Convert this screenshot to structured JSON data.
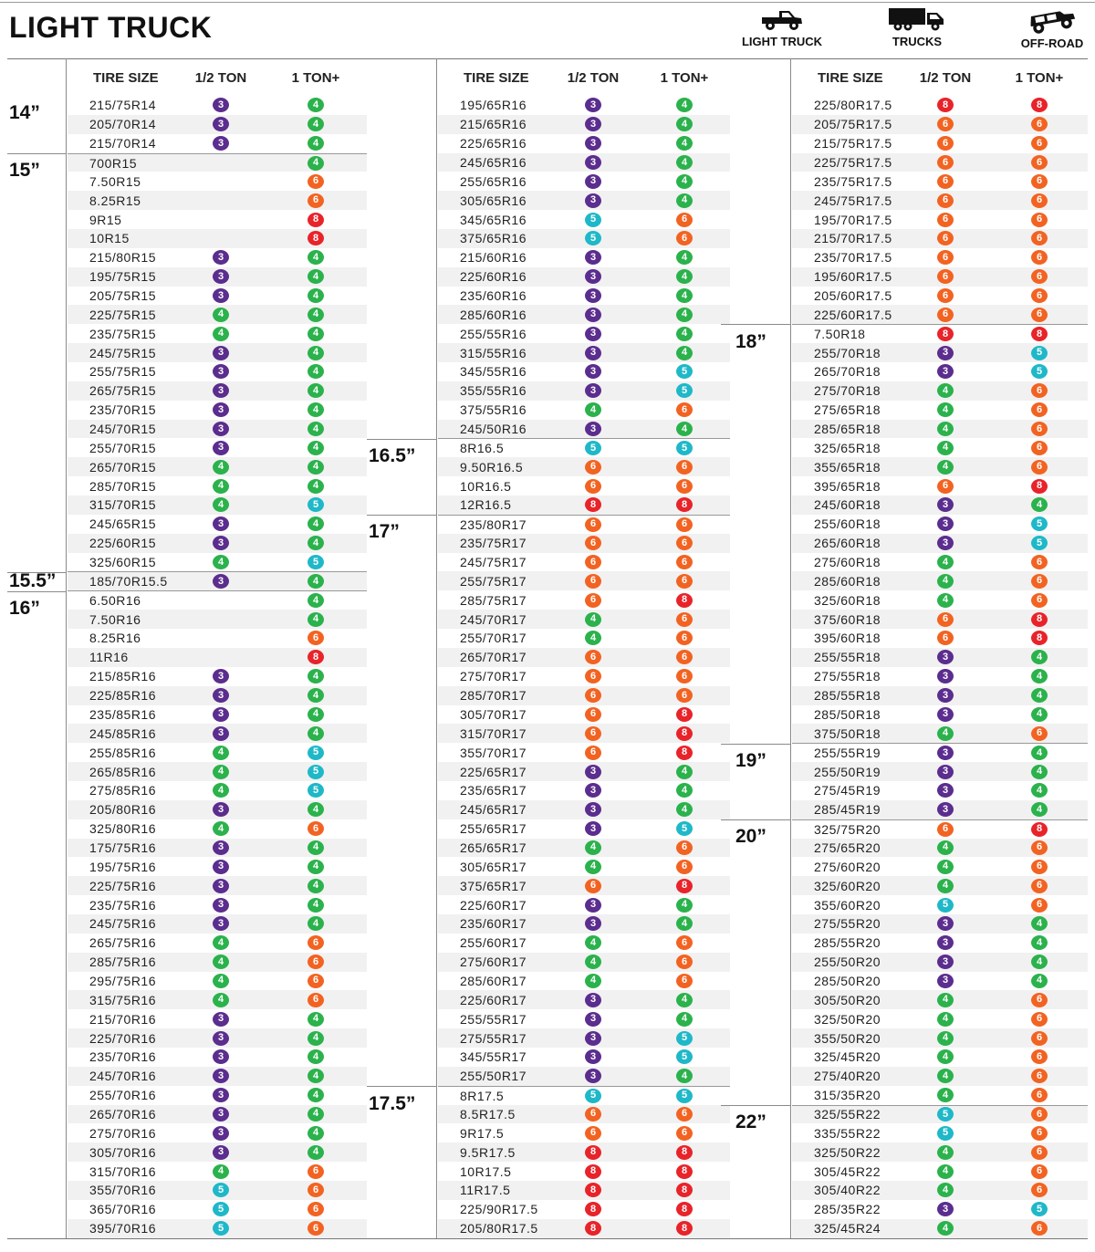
{
  "title": "LIGHT TRUCK",
  "categories": [
    {
      "label": "LIGHT TRUCK",
      "icon": "pickup-truck-icon"
    },
    {
      "label": "TRUCKS",
      "icon": "box-truck-icon"
    },
    {
      "label": "OFF-ROAD",
      "icon": "offroad-jeep-icon"
    }
  ],
  "headers": {
    "size": "TIRE SIZE",
    "half": "1/2 TON",
    "one": "1 TON+"
  },
  "colors": {
    "3": "#5b2d8e",
    "4": "#2bb24c",
    "5": "#1fb8c8",
    "6": "#f26322",
    "8": "#e8232a"
  },
  "columns": [
    {
      "groups": [
        {
          "label": "14”",
          "rows": [
            [
              "215/75R14",
              "3",
              "4"
            ],
            [
              "205/70R14",
              "3",
              "4"
            ],
            [
              "215/70R14",
              "3",
              "4"
            ]
          ]
        },
        {
          "label": "15”",
          "rows": [
            [
              "700R15",
              "",
              "4"
            ],
            [
              "7.50R15",
              "",
              "6"
            ],
            [
              "8.25R15",
              "",
              "6"
            ],
            [
              "9R15",
              "",
              "8"
            ],
            [
              "10R15",
              "",
              "8"
            ],
            [
              "215/80R15",
              "3",
              "4"
            ],
            [
              "195/75R15",
              "3",
              "4"
            ],
            [
              "205/75R15",
              "3",
              "4"
            ],
            [
              "225/75R15",
              "4",
              "4"
            ],
            [
              "235/75R15",
              "4",
              "4"
            ],
            [
              "245/75R15",
              "3",
              "4"
            ],
            [
              "255/75R15",
              "3",
              "4"
            ],
            [
              "265/75R15",
              "3",
              "4"
            ],
            [
              "235/70R15",
              "3",
              "4"
            ],
            [
              "245/70R15",
              "3",
              "4"
            ],
            [
              "255/70R15",
              "3",
              "4"
            ],
            [
              "265/70R15",
              "4",
              "4"
            ],
            [
              "285/70R15",
              "4",
              "4"
            ],
            [
              "315/70R15",
              "4",
              "5"
            ],
            [
              "245/65R15",
              "3",
              "4"
            ],
            [
              "225/60R15",
              "3",
              "4"
            ],
            [
              "325/60R15",
              "4",
              "5"
            ]
          ]
        },
        {
          "label": "15.5”",
          "rows": [
            [
              "185/70R15.5",
              "3",
              "4"
            ]
          ]
        },
        {
          "label": "16”",
          "rows": [
            [
              "6.50R16",
              "",
              "4"
            ],
            [
              "7.50R16",
              "",
              "4"
            ],
            [
              "8.25R16",
              "",
              "6"
            ],
            [
              "11R16",
              "",
              "8"
            ],
            [
              "215/85R16",
              "3",
              "4"
            ],
            [
              "225/85R16",
              "3",
              "4"
            ],
            [
              "235/85R16",
              "3",
              "4"
            ],
            [
              "245/85R16",
              "3",
              "4"
            ],
            [
              "255/85R16",
              "4",
              "5"
            ],
            [
              "265/85R16",
              "4",
              "5"
            ],
            [
              "275/85R16",
              "4",
              "5"
            ],
            [
              "205/80R16",
              "3",
              "4"
            ],
            [
              "325/80R16",
              "4",
              "6"
            ],
            [
              "175/75R16",
              "3",
              "4"
            ],
            [
              "195/75R16",
              "3",
              "4"
            ],
            [
              "225/75R16",
              "3",
              "4"
            ],
            [
              "235/75R16",
              "3",
              "4"
            ],
            [
              "245/75R16",
              "3",
              "4"
            ],
            [
              "265/75R16",
              "4",
              "6"
            ],
            [
              "285/75R16",
              "4",
              "6"
            ],
            [
              "295/75R16",
              "4",
              "6"
            ],
            [
              "315/75R16",
              "4",
              "6"
            ],
            [
              "215/70R16",
              "3",
              "4"
            ],
            [
              "225/70R16",
              "3",
              "4"
            ],
            [
              "235/70R16",
              "3",
              "4"
            ],
            [
              "245/70R16",
              "3",
              "4"
            ],
            [
              "255/70R16",
              "3",
              "4"
            ],
            [
              "265/70R16",
              "3",
              "4"
            ],
            [
              "275/70R16",
              "3",
              "4"
            ],
            [
              "305/70R16",
              "3",
              "4"
            ],
            [
              "315/70R16",
              "4",
              "6"
            ],
            [
              "355/70R16",
              "5",
              "6"
            ],
            [
              "365/70R16",
              "5",
              "6"
            ],
            [
              "395/70R16",
              "5",
              "6"
            ]
          ]
        }
      ]
    },
    {
      "groups": [
        {
          "label": "",
          "rows": [
            [
              "195/65R16",
              "3",
              "4"
            ],
            [
              "215/65R16",
              "3",
              "4"
            ],
            [
              "225/65R16",
              "3",
              "4"
            ],
            [
              "245/65R16",
              "3",
              "4"
            ],
            [
              "255/65R16",
              "3",
              "4"
            ],
            [
              "305/65R16",
              "3",
              "4"
            ],
            [
              "345/65R16",
              "5",
              "6"
            ],
            [
              "375/65R16",
              "5",
              "6"
            ],
            [
              "215/60R16",
              "3",
              "4"
            ],
            [
              "225/60R16",
              "3",
              "4"
            ],
            [
              "235/60R16",
              "3",
              "4"
            ],
            [
              "285/60R16",
              "3",
              "4"
            ],
            [
              "255/55R16",
              "3",
              "4"
            ],
            [
              "315/55R16",
              "3",
              "4"
            ],
            [
              "345/55R16",
              "3",
              "5"
            ],
            [
              "355/55R16",
              "3",
              "5"
            ],
            [
              "375/55R16",
              "4",
              "6"
            ],
            [
              "245/50R16",
              "3",
              "4"
            ]
          ]
        },
        {
          "label": "16.5”",
          "rows": [
            [
              "8R16.5",
              "5",
              "5"
            ],
            [
              "9.50R16.5",
              "6",
              "6"
            ],
            [
              "10R16.5",
              "6",
              "6"
            ],
            [
              "12R16.5",
              "8",
              "8"
            ]
          ]
        },
        {
          "label": "17”",
          "rows": [
            [
              "235/80R17",
              "6",
              "6"
            ],
            [
              "235/75R17",
              "6",
              "6"
            ],
            [
              "245/75R17",
              "6",
              "6"
            ],
            [
              "255/75R17",
              "6",
              "6"
            ],
            [
              "285/75R17",
              "6",
              "8"
            ],
            [
              "245/70R17",
              "4",
              "6"
            ],
            [
              "255/70R17",
              "4",
              "6"
            ],
            [
              "265/70R17",
              "6",
              "6"
            ],
            [
              "275/70R17",
              "6",
              "6"
            ],
            [
              "285/70R17",
              "6",
              "6"
            ],
            [
              "305/70R17",
              "6",
              "8"
            ],
            [
              "315/70R17",
              "6",
              "8"
            ],
            [
              "355/70R17",
              "6",
              "8"
            ],
            [
              "225/65R17",
              "3",
              "4"
            ],
            [
              "235/65R17",
              "3",
              "4"
            ],
            [
              "245/65R17",
              "3",
              "4"
            ],
            [
              "255/65R17",
              "3",
              "5"
            ],
            [
              "265/65R17",
              "4",
              "6"
            ],
            [
              "305/65R17",
              "4",
              "6"
            ],
            [
              "375/65R17",
              "6",
              "8"
            ],
            [
              "225/60R17",
              "3",
              "4"
            ],
            [
              "235/60R17",
              "3",
              "4"
            ],
            [
              "255/60R17",
              "4",
              "6"
            ],
            [
              "275/60R17",
              "4",
              "6"
            ],
            [
              "285/60R17",
              "4",
              "6"
            ],
            [
              "225/60R17",
              "3",
              "4"
            ],
            [
              "255/55R17",
              "3",
              "4"
            ],
            [
              "275/55R17",
              "3",
              "5"
            ],
            [
              "345/55R17",
              "3",
              "5"
            ],
            [
              "255/50R17",
              "3",
              "4"
            ]
          ]
        },
        {
          "label": "17.5”",
          "rows": [
            [
              "8R17.5",
              "5",
              "5"
            ],
            [
              "8.5R17.5",
              "6",
              "6"
            ],
            [
              "9R17.5",
              "6",
              "6"
            ],
            [
              "9.5R17.5",
              "8",
              "8"
            ],
            [
              "10R17.5",
              "8",
              "8"
            ],
            [
              "11R17.5",
              "8",
              "8"
            ],
            [
              "225/90R17.5",
              "8",
              "8"
            ],
            [
              "205/80R17.5",
              "8",
              "8"
            ]
          ]
        }
      ]
    },
    {
      "groups": [
        {
          "label": "",
          "rows": [
            [
              "225/80R17.5",
              "8",
              "8"
            ],
            [
              "205/75R17.5",
              "6",
              "6"
            ],
            [
              "215/75R17.5",
              "6",
              "6"
            ],
            [
              "225/75R17.5",
              "6",
              "6"
            ],
            [
              "235/75R17.5",
              "6",
              "6"
            ],
            [
              "245/75R17.5",
              "6",
              "6"
            ],
            [
              "195/70R17.5",
              "6",
              "6"
            ],
            [
              "215/70R17.5",
              "6",
              "6"
            ],
            [
              "235/70R17.5",
              "6",
              "6"
            ],
            [
              "195/60R17.5",
              "6",
              "6"
            ],
            [
              "205/60R17.5",
              "6",
              "6"
            ],
            [
              "225/60R17.5",
              "6",
              "6"
            ]
          ]
        },
        {
          "label": "18”",
          "rows": [
            [
              "7.50R18",
              "8",
              "8"
            ],
            [
              "255/70R18",
              "3",
              "5"
            ],
            [
              "265/70R18",
              "3",
              "5"
            ],
            [
              "275/70R18",
              "4",
              "6"
            ],
            [
              "275/65R18",
              "4",
              "6"
            ],
            [
              "285/65R18",
              "4",
              "6"
            ],
            [
              "325/65R18",
              "4",
              "6"
            ],
            [
              "355/65R18",
              "4",
              "6"
            ],
            [
              "395/65R18",
              "6",
              "8"
            ],
            [
              "245/60R18",
              "3",
              "4"
            ],
            [
              "255/60R18",
              "3",
              "5"
            ],
            [
              "265/60R18",
              "3",
              "5"
            ],
            [
              "275/60R18",
              "4",
              "6"
            ],
            [
              "285/60R18",
              "4",
              "6"
            ],
            [
              "325/60R18",
              "4",
              "6"
            ],
            [
              "375/60R18",
              "6",
              "8"
            ],
            [
              "395/60R18",
              "6",
              "8"
            ],
            [
              "255/55R18",
              "3",
              "4"
            ],
            [
              "275/55R18",
              "3",
              "4"
            ],
            [
              "285/55R18",
              "3",
              "4"
            ],
            [
              "285/50R18",
              "3",
              "4"
            ],
            [
              "375/50R18",
              "4",
              "6"
            ]
          ]
        },
        {
          "label": "19”",
          "rows": [
            [
              "255/55R19",
              "3",
              "4"
            ],
            [
              "255/50R19",
              "3",
              "4"
            ],
            [
              "275/45R19",
              "3",
              "4"
            ],
            [
              "285/45R19",
              "3",
              "4"
            ]
          ]
        },
        {
          "label": "20”",
          "rows": [
            [
              "325/75R20",
              "6",
              "8"
            ],
            [
              "275/65R20",
              "4",
              "6"
            ],
            [
              "275/60R20",
              "4",
              "6"
            ],
            [
              "325/60R20",
              "4",
              "6"
            ],
            [
              "355/60R20",
              "5",
              "6"
            ],
            [
              "275/55R20",
              "3",
              "4"
            ],
            [
              "285/55R20",
              "3",
              "4"
            ],
            [
              "255/50R20",
              "3",
              "4"
            ],
            [
              "285/50R20",
              "3",
              "4"
            ],
            [
              "305/50R20",
              "4",
              "6"
            ],
            [
              "325/50R20",
              "4",
              "6"
            ],
            [
              "355/50R20",
              "4",
              "6"
            ],
            [
              "325/45R20",
              "4",
              "6"
            ],
            [
              "275/40R20",
              "4",
              "6"
            ],
            [
              "315/35R20",
              "4",
              "6"
            ]
          ]
        },
        {
          "label": "22”",
          "rows": [
            [
              "325/55R22",
              "5",
              "6"
            ],
            [
              "335/55R22",
              "5",
              "6"
            ],
            [
              "325/50R22",
              "4",
              "6"
            ],
            [
              "305/45R22",
              "4",
              "6"
            ],
            [
              "305/40R22",
              "4",
              "6"
            ],
            [
              "285/35R22",
              "3",
              "5"
            ],
            [
              "325/45R24",
              "4",
              "6"
            ]
          ]
        }
      ]
    }
  ]
}
